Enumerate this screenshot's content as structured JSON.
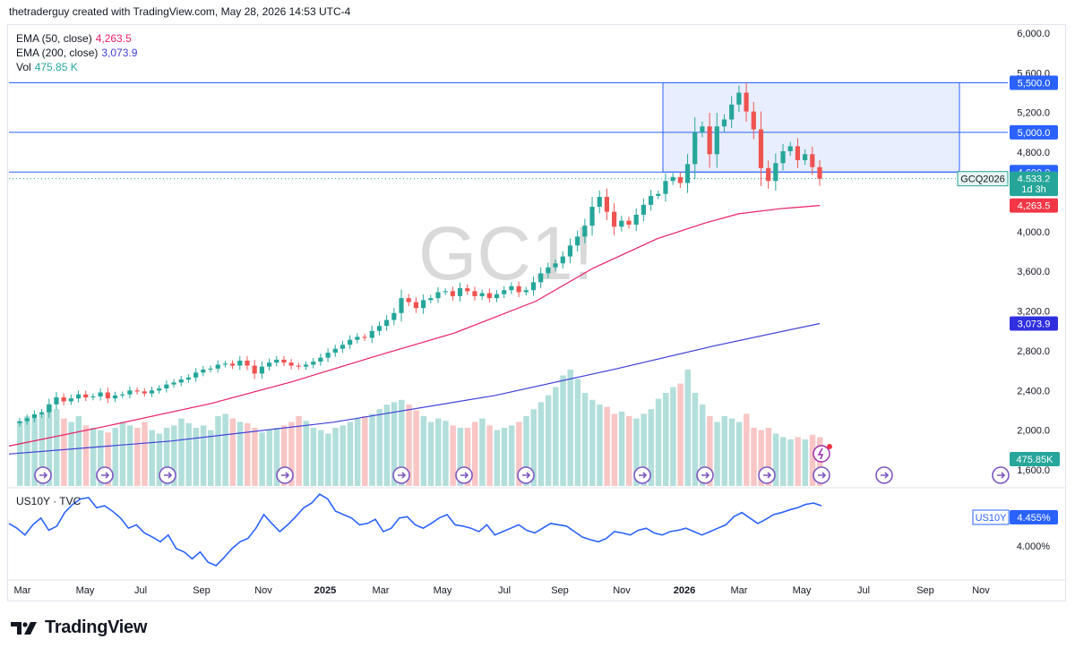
{
  "header": {
    "credit": "thetraderguy created with TradingView.com, May 28, 2026 14:53 UTC-4"
  },
  "watermark": "GC1!",
  "legend": [
    {
      "label": "EMA (50, close)",
      "value": "4,263.5",
      "color": "#e91e63"
    },
    {
      "label": "EMA (200, close)",
      "value": "3,073.9",
      "color": "#3f3fd8"
    },
    {
      "label": "Vol",
      "value": "475.85 K",
      "color": "#26a69a"
    }
  ],
  "sub_pane": {
    "label": "US10Y · TVC",
    "tag": "US10Y",
    "value": "4.455%",
    "level_label": "4.000%"
  },
  "price_badges": [
    {
      "text": "5,500.0",
      "price": 5500,
      "bg": "#2962ff",
      "fg": "#ffffff"
    },
    {
      "text": "5,000.0",
      "price": 5000,
      "bg": "#2962ff",
      "fg": "#ffffff"
    },
    {
      "text": "4,600.0",
      "price": 4600,
      "bg": "#2962ff",
      "fg": "#ffffff"
    },
    {
      "text": "4,533.2",
      "price": 4533.2,
      "bg": "#26a69a",
      "fg": "#ffffff"
    },
    {
      "text": "1d 3h",
      "price": 4430,
      "bg": "#26a69a",
      "fg": "#ffffff"
    },
    {
      "text": "4,263.5",
      "price": 4263.5,
      "bg": "#f23645",
      "fg": "#ffffff"
    },
    {
      "text": "3,073.9",
      "price": 3073.9,
      "bg": "#3030e0",
      "fg": "#ffffff"
    }
  ],
  "symbol_tag": "GCQ2026",
  "volume_tag": "475.85K",
  "footer": {
    "brand": "TradingView"
  },
  "colors": {
    "up": "#26a69a",
    "down": "#ef5350",
    "rect_fill": "#e8eefd",
    "line": "#2962ff",
    "us10y": "#2962ff"
  },
  "chart_data": {
    "type": "candlestick",
    "interval": "weekly",
    "y_ticks": [
      "6,000.0",
      "5,600.0",
      "5,200.0",
      "4,800.0",
      "4,000.0",
      "3,600.0",
      "3,200.0",
      "2,800.0",
      "2,400.0",
      "2,000.0",
      "1,600.0"
    ],
    "y_tick_values": [
      6000,
      5600,
      5200,
      4800,
      4000,
      3600,
      3200,
      2800,
      2400,
      2000,
      1600
    ],
    "x_ticks": [
      "Mar",
      "May",
      "Jul",
      "Sep",
      "Nov",
      "2025",
      "Mar",
      "May",
      "Jul",
      "Sep",
      "Nov",
      "2026",
      "Mar",
      "May",
      "Jul",
      "Sep",
      "Nov"
    ],
    "horizontal_levels": [
      5500,
      5000,
      4600
    ],
    "zone": {
      "top": 5500,
      "bottom": 4600
    },
    "close_series": [
      2090,
      2120,
      2160,
      2180,
      2260,
      2330,
      2290,
      2320,
      2360,
      2330,
      2340,
      2380,
      2320,
      2350,
      2360,
      2400,
      2390,
      2370,
      2400,
      2420,
      2460,
      2480,
      2510,
      2530,
      2580,
      2610,
      2620,
      2660,
      2670,
      2650,
      2700,
      2650,
      2570,
      2640,
      2680,
      2710,
      2680,
      2650,
      2640,
      2660,
      2690,
      2730,
      2780,
      2820,
      2860,
      2910,
      2940,
      2930,
      3000,
      3050,
      3110,
      3180,
      3330,
      3290,
      3230,
      3310,
      3330,
      3390,
      3400,
      3350,
      3430,
      3400,
      3350,
      3380,
      3330,
      3370,
      3410,
      3450,
      3390,
      3410,
      3490,
      3580,
      3640,
      3680,
      3750,
      3860,
      3950,
      4060,
      4250,
      4350,
      4200,
      4050,
      4110,
      4070,
      4170,
      4270,
      4360,
      4380,
      4510,
      4550,
      4490,
      4680,
      5000,
      5060,
      4780,
      5060,
      5130,
      5280,
      5400,
      5210,
      5030,
      4640,
      4510,
      4690,
      4810,
      4860,
      4720,
      4780,
      4650,
      4533
    ],
    "ema50": [
      {
        "x": 0,
        "v": 1840
      },
      {
        "x": 0.12,
        "v": 2040
      },
      {
        "x": 0.25,
        "v": 2270
      },
      {
        "x": 0.35,
        "v": 2490
      },
      {
        "x": 0.45,
        "v": 2740
      },
      {
        "x": 0.55,
        "v": 2980
      },
      {
        "x": 0.65,
        "v": 3300
      },
      {
        "x": 0.72,
        "v": 3630
      },
      {
        "x": 0.8,
        "v": 3930
      },
      {
        "x": 0.86,
        "v": 4090
      },
      {
        "x": 0.9,
        "v": 4180
      },
      {
        "x": 0.95,
        "v": 4230
      },
      {
        "x": 1,
        "v": 4263.5
      }
    ],
    "ema200": [
      {
        "x": 0,
        "v": 1760
      },
      {
        "x": 0.2,
        "v": 1890
      },
      {
        "x": 0.4,
        "v": 2080
      },
      {
        "x": 0.6,
        "v": 2350
      },
      {
        "x": 0.75,
        "v": 2620
      },
      {
        "x": 0.87,
        "v": 2850
      },
      {
        "x": 1,
        "v": 3073.9
      }
    ],
    "volume_relative": [
      0.55,
      0.6,
      0.58,
      0.62,
      0.7,
      0.66,
      0.58,
      0.55,
      0.6,
      0.52,
      0.5,
      0.48,
      0.46,
      0.5,
      0.55,
      0.52,
      0.5,
      0.55,
      0.48,
      0.45,
      0.5,
      0.52,
      0.58,
      0.54,
      0.5,
      0.52,
      0.48,
      0.6,
      0.62,
      0.58,
      0.55,
      0.54,
      0.5,
      0.46,
      0.48,
      0.5,
      0.52,
      0.55,
      0.6,
      0.56,
      0.5,
      0.48,
      0.45,
      0.5,
      0.52,
      0.55,
      0.58,
      0.6,
      0.62,
      0.66,
      0.7,
      0.72,
      0.74,
      0.7,
      0.65,
      0.6,
      0.55,
      0.58,
      0.56,
      0.52,
      0.5,
      0.5,
      0.55,
      0.58,
      0.52,
      0.48,
      0.5,
      0.52,
      0.55,
      0.6,
      0.66,
      0.72,
      0.78,
      0.85,
      0.95,
      1.0,
      0.92,
      0.8,
      0.74,
      0.7,
      0.68,
      0.62,
      0.64,
      0.6,
      0.58,
      0.62,
      0.66,
      0.75,
      0.8,
      0.85,
      0.88,
      1.0,
      0.8,
      0.7,
      0.6,
      0.55,
      0.6,
      0.58,
      0.55,
      0.62,
      0.5,
      0.48,
      0.5,
      0.45,
      0.42,
      0.4,
      0.42,
      0.4,
      0.44,
      0.42
    ],
    "us10y_relative": [
      0.62,
      0.55,
      0.45,
      0.6,
      0.7,
      0.52,
      0.58,
      0.78,
      0.9,
      0.98,
      1.0,
      0.85,
      0.88,
      0.8,
      0.7,
      0.55,
      0.6,
      0.48,
      0.42,
      0.35,
      0.45,
      0.25,
      0.2,
      0.1,
      0.2,
      0.05,
      0.0,
      0.12,
      0.25,
      0.35,
      0.4,
      0.55,
      0.75,
      0.62,
      0.5,
      0.6,
      0.72,
      0.85,
      0.92,
      1.05,
      0.98,
      0.8,
      0.75,
      0.7,
      0.6,
      0.62,
      0.68,
      0.5,
      0.55,
      0.7,
      0.72,
      0.6,
      0.55,
      0.62,
      0.7,
      0.75,
      0.6,
      0.58,
      0.55,
      0.5,
      0.6,
      0.45,
      0.5,
      0.55,
      0.6,
      0.52,
      0.48,
      0.55,
      0.62,
      0.6,
      0.58,
      0.5,
      0.42,
      0.38,
      0.35,
      0.4,
      0.5,
      0.48,
      0.45,
      0.52,
      0.55,
      0.48,
      0.45,
      0.5,
      0.52,
      0.55,
      0.5,
      0.45,
      0.5,
      0.55,
      0.6,
      0.72,
      0.78,
      0.7,
      0.62,
      0.68,
      0.75,
      0.78,
      0.82,
      0.85,
      0.9,
      0.92,
      0.88
    ]
  }
}
